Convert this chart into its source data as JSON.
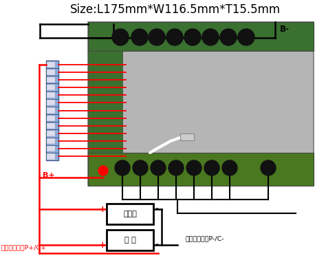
{
  "title": "Size:L175mm*W116.5mm*T15.5mm",
  "title_fontsize": 12,
  "bg_color": "#ffffff",
  "label_Bminus": "B-",
  "label_Bplus": "B+",
  "label_positive": "输出输入正极P+/C+",
  "label_negative": "输出输入负极P-/C-",
  "label_charger": "充电器",
  "label_load": "负 载",
  "red_color": "#ff0000",
  "black_color": "#000000",
  "board_gray": "#b8b8b8",
  "board_green_top": "#3a7a3a",
  "board_green_bot": "#4a7a2a",
  "blue_connector": "#6688cc",
  "wire_lw": 1.8,
  "red_wire_lw": 1.3
}
